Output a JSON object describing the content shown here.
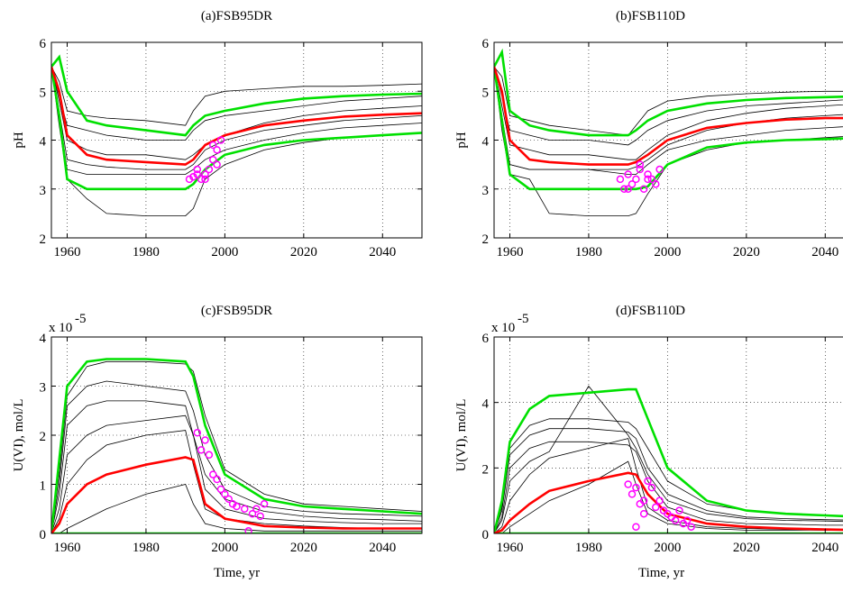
{
  "chart_data": [
    {
      "type": "line",
      "title": "(a)FSB95DR",
      "ylabel": "pH",
      "x": [
        1956,
        1958,
        1960,
        1965,
        1970,
        1980,
        1990,
        1992,
        1995,
        2000,
        2010,
        2020,
        2030,
        2040,
        2050
      ],
      "xlim": [
        1956,
        2050
      ],
      "xticks": [
        1960,
        1980,
        2000,
        2020,
        2040
      ],
      "ylim": [
        2,
        6
      ],
      "yticks": [
        2,
        3,
        4,
        5,
        6
      ],
      "grid": true,
      "series": [
        {
          "color": "#000000",
          "values": [
            5.5,
            5.2,
            4.6,
            4.5,
            4.45,
            4.4,
            4.3,
            4.6,
            4.9,
            5.0,
            5.05,
            5.1,
            5.1,
            5.12,
            5.15
          ]
        },
        {
          "color": "#000000",
          "values": [
            5.5,
            4.8,
            4.0,
            3.8,
            3.7,
            3.7,
            3.6,
            3.7,
            3.9,
            4.1,
            4.35,
            4.5,
            4.6,
            4.65,
            4.7
          ]
        },
        {
          "color": "#000000",
          "values": [
            5.5,
            4.6,
            3.6,
            3.5,
            3.45,
            3.4,
            3.4,
            3.5,
            3.8,
            4.0,
            4.2,
            4.3,
            4.4,
            4.45,
            4.5
          ]
        },
        {
          "color": "#000000",
          "values": [
            5.5,
            4.3,
            3.2,
            2.8,
            2.5,
            2.45,
            2.45,
            2.6,
            3.2,
            3.5,
            3.8,
            3.95,
            4.05,
            4.1,
            4.15
          ]
        },
        {
          "color": "#000000",
          "values": [
            5.5,
            4.9,
            4.3,
            4.2,
            4.1,
            4.0,
            4.0,
            4.2,
            4.4,
            4.5,
            4.6,
            4.7,
            4.8,
            4.85,
            4.9
          ]
        },
        {
          "color": "#000000",
          "values": [
            5.5,
            4.5,
            3.4,
            3.3,
            3.3,
            3.3,
            3.3,
            3.4,
            3.6,
            3.8,
            4.0,
            4.15,
            4.25,
            4.3,
            4.35
          ]
        },
        {
          "color": "#00e000",
          "values": [
            5.5,
            5.7,
            5.0,
            4.4,
            4.3,
            4.2,
            4.1,
            4.3,
            4.5,
            4.6,
            4.75,
            4.85,
            4.9,
            4.93,
            4.95
          ]
        },
        {
          "color": "#00e000",
          "values": [
            5.5,
            4.5,
            3.2,
            3.0,
            3.0,
            3.0,
            3.0,
            3.1,
            3.4,
            3.7,
            3.9,
            4.0,
            4.05,
            4.1,
            4.15
          ]
        },
        {
          "color": "#ff0000",
          "values": [
            5.5,
            5.0,
            4.1,
            3.7,
            3.6,
            3.55,
            3.5,
            3.6,
            3.9,
            4.1,
            4.3,
            4.4,
            4.48,
            4.52,
            4.55
          ]
        }
      ],
      "observations": {
        "color": "#ff00ff",
        "x": [
          1991,
          1992,
          1993,
          1994,
          1995,
          1996,
          1997,
          1998,
          1999,
          1997,
          1998,
          1993,
          1995
        ],
        "y": [
          3.2,
          3.25,
          3.3,
          3.2,
          3.3,
          3.4,
          3.6,
          3.8,
          4.0,
          3.9,
          3.5,
          3.4,
          3.2
        ]
      }
    },
    {
      "type": "line",
      "title": "(b)FSB110D",
      "ylabel": "pH",
      "x": [
        1956,
        1958,
        1960,
        1965,
        1970,
        1980,
        1990,
        1992,
        1995,
        2000,
        2010,
        2020,
        2030,
        2040,
        2050
      ],
      "xlim": [
        1956,
        2050
      ],
      "xticks": [
        1960,
        1980,
        2000,
        2020,
        2040
      ],
      "ylim": [
        2,
        6
      ],
      "yticks": [
        2,
        3,
        4,
        5,
        6
      ],
      "grid": true,
      "series": [
        {
          "color": "#000000",
          "values": [
            5.5,
            5.3,
            4.5,
            4.4,
            4.3,
            4.2,
            4.1,
            4.3,
            4.6,
            4.8,
            4.9,
            4.95,
            4.98,
            5.0,
            5.0
          ]
        },
        {
          "color": "#000000",
          "values": [
            5.5,
            4.7,
            3.9,
            3.8,
            3.7,
            3.7,
            3.6,
            3.6,
            3.8,
            4.1,
            4.4,
            4.55,
            4.65,
            4.7,
            4.75
          ]
        },
        {
          "color": "#000000",
          "values": [
            5.5,
            4.5,
            3.5,
            3.4,
            3.4,
            3.4,
            3.4,
            3.45,
            3.6,
            3.9,
            4.2,
            4.35,
            4.45,
            4.5,
            4.55
          ]
        },
        {
          "color": "#000000",
          "values": [
            5.5,
            4.2,
            3.3,
            3.2,
            2.5,
            2.45,
            2.45,
            2.5,
            2.9,
            3.5,
            3.8,
            3.95,
            4.0,
            4.05,
            4.1
          ]
        },
        {
          "color": "#000000",
          "values": [
            5.5,
            4.9,
            4.2,
            4.1,
            4.0,
            4.0,
            3.9,
            4.0,
            4.2,
            4.4,
            4.6,
            4.7,
            4.75,
            4.8,
            4.85
          ]
        },
        {
          "color": "#000000",
          "values": [
            5.5,
            4.4,
            3.5,
            3.4,
            3.4,
            3.4,
            3.3,
            3.3,
            3.5,
            3.8,
            4.0,
            4.1,
            4.2,
            4.25,
            4.3
          ]
        },
        {
          "color": "#00e000",
          "values": [
            5.5,
            5.8,
            4.6,
            4.3,
            4.2,
            4.1,
            4.1,
            4.2,
            4.4,
            4.6,
            4.75,
            4.82,
            4.86,
            4.88,
            4.9
          ]
        },
        {
          "color": "#00e000",
          "values": [
            5.5,
            4.4,
            3.3,
            3.0,
            3.0,
            3.0,
            3.0,
            3.0,
            3.05,
            3.5,
            3.85,
            3.95,
            4.0,
            4.02,
            4.05
          ]
        },
        {
          "color": "#ff0000",
          "values": [
            5.5,
            5.0,
            4.0,
            3.6,
            3.55,
            3.5,
            3.5,
            3.55,
            3.7,
            4.0,
            4.25,
            4.35,
            4.42,
            4.45,
            4.45
          ]
        }
      ],
      "observations": {
        "color": "#ff00ff",
        "x": [
          1988,
          1989,
          1990,
          1991,
          1992,
          1993,
          1994,
          1995,
          1996,
          1997,
          1998,
          1990,
          1993,
          1995
        ],
        "y": [
          3.2,
          3.0,
          3.3,
          3.1,
          3.2,
          3.4,
          3.0,
          3.3,
          3.2,
          3.1,
          3.4,
          3.0,
          3.5,
          3.2
        ]
      }
    },
    {
      "type": "line",
      "title": "(c)FSB95DR",
      "ylabel": "U(VI), mol/L",
      "xlabel": "Time, yr",
      "y_multiplier": "x 10",
      "y_multiplier_exponent": "-5",
      "x": [
        1956,
        1958,
        1960,
        1965,
        1970,
        1980,
        1990,
        1992,
        1995,
        2000,
        2010,
        2020,
        2030,
        2040,
        2050
      ],
      "xlim": [
        1956,
        2050
      ],
      "xticks": [
        1960,
        1980,
        2000,
        2020,
        2040
      ],
      "ylim": [
        0,
        4
      ],
      "yticks": [
        0,
        1,
        2,
        3,
        4
      ],
      "grid": true,
      "series": [
        {
          "color": "#000000",
          "values": [
            0,
            1.2,
            2.8,
            3.4,
            3.5,
            3.5,
            3.45,
            3.3,
            2.4,
            1.3,
            0.8,
            0.6,
            0.55,
            0.5,
            0.45
          ]
        },
        {
          "color": "#000000",
          "values": [
            0,
            0.8,
            2.2,
            2.6,
            2.7,
            2.7,
            2.6,
            2.0,
            0.9,
            0.5,
            0.3,
            0.25,
            0.22,
            0.2,
            0.2
          ]
        },
        {
          "color": "#000000",
          "values": [
            0,
            0.3,
            1.0,
            1.5,
            1.8,
            2.0,
            2.1,
            1.4,
            0.5,
            0.3,
            0.2,
            0.15,
            0.12,
            0.1,
            0.1
          ]
        },
        {
          "color": "#000000",
          "values": [
            0,
            0.5,
            1.6,
            2.0,
            2.2,
            2.3,
            2.4,
            2.0,
            1.2,
            0.7,
            0.45,
            0.35,
            0.3,
            0.28,
            0.25
          ]
        },
        {
          "color": "#000000",
          "values": [
            0,
            0,
            0.1,
            0.3,
            0.5,
            0.8,
            1.0,
            0.6,
            0.2,
            0.1,
            0.05,
            0.05,
            0.05,
            0.05,
            0.05
          ]
        },
        {
          "color": "#000000",
          "values": [
            0,
            1.0,
            2.6,
            3.0,
            3.1,
            3.0,
            2.9,
            2.5,
            1.6,
            0.9,
            0.55,
            0.45,
            0.4,
            0.38,
            0.35
          ]
        },
        {
          "color": "#00e000",
          "values": [
            0,
            1.5,
            3.0,
            3.5,
            3.55,
            3.55,
            3.5,
            3.2,
            2.2,
            1.2,
            0.7,
            0.55,
            0.5,
            0.45,
            0.4
          ]
        },
        {
          "color": "#00e000",
          "values": [
            0,
            0,
            0,
            0,
            0,
            0,
            0,
            0,
            0,
            0,
            0,
            0,
            0,
            0,
            0
          ]
        },
        {
          "color": "#ff0000",
          "values": [
            0,
            0.2,
            0.6,
            1.0,
            1.2,
            1.4,
            1.55,
            1.5,
            0.6,
            0.3,
            0.15,
            0.12,
            0.1,
            0.1,
            0.1
          ]
        }
      ],
      "observations": {
        "color": "#ff00ff",
        "x": [
          1993,
          1994,
          1995,
          1996,
          1997,
          1998,
          1999,
          2000,
          2001,
          2002,
          2003,
          2005,
          2006,
          2007,
          2008,
          2009,
          2010
        ],
        "y": [
          2.05,
          1.7,
          1.9,
          1.6,
          1.2,
          1.1,
          0.9,
          0.8,
          0.7,
          0.6,
          0.55,
          0.5,
          0.05,
          0.4,
          0.5,
          0.35,
          0.6
        ]
      }
    },
    {
      "type": "line",
      "title": "(d)FSB110D",
      "ylabel": "U(VI), mol/L",
      "xlabel": "Time, yr",
      "y_multiplier": "x 10",
      "y_multiplier_exponent": "-5",
      "x": [
        1956,
        1958,
        1960,
        1965,
        1970,
        1980,
        1990,
        1992,
        1995,
        2000,
        2010,
        2020,
        2030,
        2040,
        2050
      ],
      "xlim": [
        1956,
        2050
      ],
      "xticks": [
        1960,
        1980,
        2000,
        2020,
        2040
      ],
      "ylim": [
        0,
        6
      ],
      "yticks": [
        0,
        2,
        4,
        6
      ],
      "grid": true,
      "series": [
        {
          "color": "#000000",
          "values": [
            0,
            0.8,
            2.6,
            3.3,
            3.5,
            3.5,
            3.4,
            3.2,
            2.6,
            1.6,
            0.9,
            0.7,
            0.6,
            0.55,
            0.5
          ]
        },
        {
          "color": "#000000",
          "values": [
            0,
            0.5,
            2.0,
            2.6,
            2.8,
            2.8,
            2.7,
            2.5,
            1.6,
            0.8,
            0.4,
            0.3,
            0.28,
            0.25,
            0.25
          ]
        },
        {
          "color": "#000000",
          "values": [
            0,
            0.2,
            1.0,
            1.8,
            2.3,
            2.6,
            2.9,
            2.0,
            0.8,
            0.4,
            0.2,
            0.15,
            0.12,
            0.1,
            0.1
          ]
        },
        {
          "color": "#000000",
          "values": [
            0,
            0.4,
            1.6,
            2.2,
            2.5,
            4.5,
            3.0,
            2.6,
            1.8,
            1.0,
            0.6,
            0.45,
            0.4,
            0.38,
            0.35
          ]
        },
        {
          "color": "#000000",
          "values": [
            0,
            0,
            0.2,
            0.6,
            1.0,
            1.5,
            2.2,
            1.5,
            0.6,
            0.3,
            0.15,
            0.1,
            0.1,
            0.1,
            0.1
          ]
        },
        {
          "color": "#000000",
          "values": [
            0,
            0.7,
            2.4,
            3.0,
            3.2,
            3.2,
            3.1,
            2.9,
            2.0,
            1.2,
            0.7,
            0.5,
            0.45,
            0.42,
            0.4
          ]
        },
        {
          "color": "#00e000",
          "values": [
            0,
            1.0,
            2.8,
            3.8,
            4.2,
            4.3,
            4.4,
            4.4,
            3.5,
            2.0,
            1.0,
            0.7,
            0.6,
            0.55,
            0.5
          ]
        },
        {
          "color": "#00e000",
          "values": [
            0,
            0,
            0,
            0,
            0,
            0,
            0,
            0,
            0,
            0,
            0,
            0,
            0,
            0,
            0
          ]
        },
        {
          "color": "#ff0000",
          "values": [
            0,
            0.1,
            0.4,
            0.9,
            1.3,
            1.6,
            1.85,
            1.8,
            1.2,
            0.6,
            0.3,
            0.2,
            0.15,
            0.12,
            0.1
          ]
        }
      ],
      "observations": {
        "color": "#ff00ff",
        "x": [
          1990,
          1991,
          1992,
          1993,
          1994,
          1995,
          1996,
          1997,
          1998,
          1999,
          2000,
          2001,
          2002,
          2003,
          2004,
          2005,
          2006,
          1992,
          1994
        ],
        "y": [
          1.5,
          1.2,
          0.2,
          0.9,
          0.6,
          1.6,
          1.4,
          0.8,
          1.0,
          0.7,
          0.6,
          0.5,
          0.4,
          0.7,
          0.3,
          0.4,
          0.2,
          1.4,
          1.0
        ]
      }
    }
  ]
}
